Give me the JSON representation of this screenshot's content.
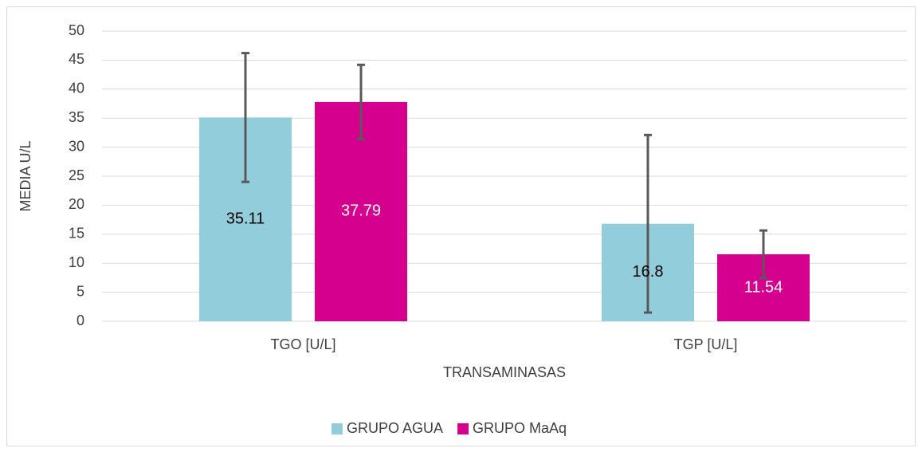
{
  "chart_data": {
    "type": "bar",
    "x_label": "TRANSAMINASAS",
    "y_label": "MEDIA  U/L",
    "categories": [
      "TGO [U/L]",
      "TGP [U/L]"
    ],
    "series": [
      {
        "name": "GRUPO AGUA",
        "color": "#92cddc",
        "label_color": "#000000",
        "values": [
          35.11,
          16.8
        ],
        "errors": [
          11.1,
          15.3
        ]
      },
      {
        "name": "GRUPO MaAq",
        "color": "#d6008f",
        "label_color": "#ffffff",
        "values": [
          37.79,
          11.54
        ],
        "errors": [
          6.4,
          4.1
        ]
      }
    ],
    "ylim": [
      0,
      50
    ],
    "yticks": [
      0,
      5,
      10,
      15,
      20,
      25,
      30,
      35,
      40,
      45,
      50
    ],
    "grid": true,
    "legend": "bottom",
    "error_color": "#595959"
  }
}
